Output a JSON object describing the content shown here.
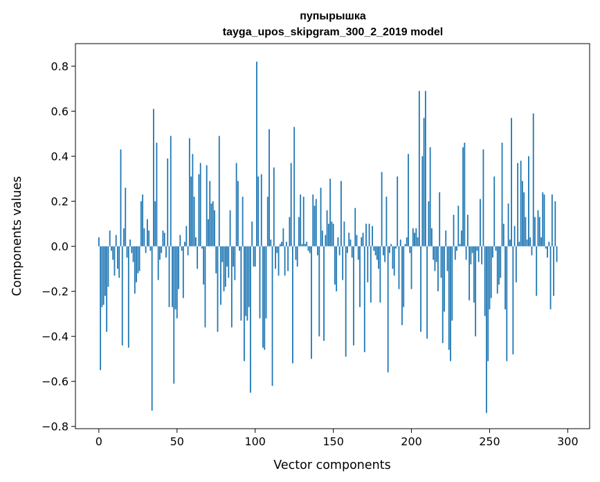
{
  "chart_data": {
    "type": "bar",
    "title": "пупырышка",
    "subtitle": "tayga_upos_skipgram_300_2_2019 model",
    "xlabel": "Vector components",
    "ylabel": "Components values",
    "xlim": [
      -15,
      314
    ],
    "ylim": [
      -0.81,
      0.9
    ],
    "xticks": [
      0,
      50,
      100,
      150,
      200,
      250,
      300
    ],
    "yticks": [
      -0.8,
      -0.6,
      -0.4,
      -0.2,
      0.0,
      0.2,
      0.4,
      0.6,
      0.8
    ],
    "xtick_labels": [
      "0",
      "50",
      "100",
      "150",
      "200",
      "250",
      "300"
    ],
    "ytick_labels": [
      "−0.8",
      "−0.6",
      "−0.4",
      "−0.2",
      "0.0",
      "0.2",
      "0.4",
      "0.6",
      "0.8"
    ],
    "color": "#1f77b4",
    "grid": false,
    "values": [
      0.04,
      -0.55,
      -0.27,
      -0.26,
      -0.22,
      -0.38,
      -0.18,
      0.07,
      -0.02,
      -0.06,
      -0.13,
      0.05,
      -0.1,
      -0.14,
      0.43,
      -0.44,
      0.08,
      0.26,
      -0.05,
      -0.45,
      0.03,
      -0.03,
      -0.07,
      -0.21,
      -0.16,
      -0.12,
      -0.11,
      0.2,
      0.23,
      0.08,
      -0.03,
      0.12,
      0.07,
      -0.02,
      -0.73,
      0.61,
      0.2,
      0.46,
      -0.15,
      -0.06,
      -0.03,
      0.07,
      0.06,
      -0.05,
      0.39,
      -0.27,
      0.49,
      -0.27,
      -0.61,
      -0.28,
      -0.32,
      -0.19,
      0.05,
      -0.02,
      -0.23,
      0.02,
      0.09,
      -0.04,
      0.48,
      0.31,
      0.41,
      0.22,
      0.04,
      -0.1,
      0.32,
      0.37,
      -0.01,
      -0.17,
      -0.36,
      0.36,
      0.12,
      0.29,
      0.19,
      0.2,
      0.16,
      -0.12,
      -0.38,
      0.49,
      -0.26,
      -0.07,
      -0.2,
      -0.18,
      -0.09,
      -0.14,
      0.16,
      -0.36,
      -0.09,
      -0.15,
      0.37,
      0.29,
      -0.02,
      -0.33,
      0.22,
      -0.51,
      -0.31,
      -0.33,
      -0.27,
      -0.65,
      0.11,
      -0.09,
      -0.09,
      0.82,
      0.31,
      -0.32,
      0.32,
      -0.45,
      -0.46,
      -0.32,
      0.22,
      0.52,
      0.03,
      -0.62,
      0.35,
      -0.1,
      -0.03,
      -0.13,
      0.01,
      0.02,
      0.08,
      -0.13,
      0.02,
      -0.11,
      0.13,
      0.37,
      -0.52,
      0.53,
      -0.06,
      -0.09,
      0.13,
      0.23,
      0.01,
      0.22,
      0.01,
      0.02,
      -0.02,
      -0.03,
      -0.5,
      0.23,
      0.18,
      0.21,
      -0.04,
      -0.4,
      0.26,
      0.07,
      -0.42,
      0.05,
      0.16,
      0.1,
      0.3,
      0.11,
      0.1,
      -0.17,
      -0.2,
      0.04,
      -0.04,
      0.29,
      -0.15,
      0.11,
      -0.49,
      -0.03,
      0.06,
      0.03,
      -0.05,
      -0.44,
      0.17,
      0.05,
      -0.06,
      -0.27,
      0.04,
      0.06,
      -0.47,
      0.1,
      -0.16,
      0.1,
      -0.25,
      0.09,
      -0.02,
      -0.04,
      -0.06,
      -0.1,
      -0.25,
      0.33,
      -0.04,
      -0.07,
      0.22,
      -0.56,
      -0.03,
      0.01,
      -0.1,
      -0.13,
      -0.01,
      0.31,
      -0.19,
      0.03,
      -0.35,
      -0.27,
      0.01,
      0.04,
      0.41,
      -0.03,
      -0.19,
      0.08,
      0.06,
      0.08,
      0.04,
      0.69,
      -0.38,
      0.4,
      0.57,
      0.69,
      -0.41,
      0.2,
      0.44,
      0.08,
      -0.06,
      -0.11,
      -0.07,
      -0.2,
      0.24,
      -0.14,
      -0.43,
      -0.29,
      0.07,
      -0.11,
      -0.46,
      -0.51,
      -0.33,
      0.14,
      -0.06,
      -0.02,
      0.18,
      0.01,
      0.07,
      0.44,
      0.46,
      -0.06,
      0.14,
      -0.24,
      -0.08,
      -0.03,
      -0.25,
      -0.4,
      -0.02,
      -0.07,
      0.21,
      -0.08,
      0.43,
      -0.31,
      -0.74,
      -0.51,
      -0.28,
      -0.23,
      -0.05,
      0.31,
      -0.02,
      -0.21,
      -0.17,
      -0.14,
      0.46,
      0.1,
      -0.28,
      -0.51,
      0.19,
      0.03,
      0.57,
      -0.48,
      0.09,
      -0.16,
      0.37,
      0.02,
      0.38,
      0.29,
      0.24,
      0.13,
      0.03,
      0.4,
      0.04,
      -0.04,
      0.59,
      0.13,
      -0.22,
      0.16,
      0.13,
      0.04,
      0.24,
      0.23,
      -0.01,
      -0.05,
      0.02,
      -0.28,
      0.23,
      -0.22,
      0.2,
      -0.07
    ]
  }
}
